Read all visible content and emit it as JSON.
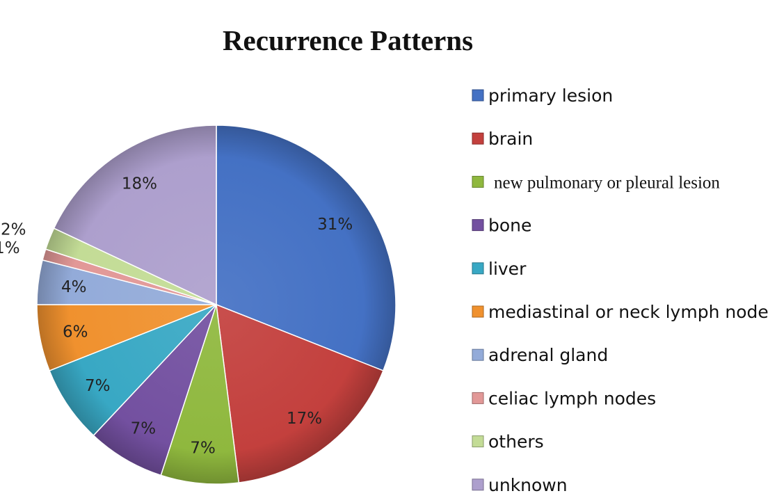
{
  "chart_data": {
    "type": "pie",
    "title": "Recurrence Patterns",
    "slices": [
      {
        "label": "primary lesion",
        "value": 31,
        "value_label": "31%",
        "color": "#4471c4"
      },
      {
        "label": "brain",
        "value": 17,
        "value_label": "17%",
        "color": "#c3403d"
      },
      {
        "label": "new pulmonary or pleural lesion",
        "value": 7,
        "value_label": "7%",
        "color": "#8fb83e"
      },
      {
        "label": "bone",
        "value": 7,
        "value_label": "7%",
        "color": "#7350a0"
      },
      {
        "label": "liver",
        "value": 7,
        "value_label": "7%",
        "color": "#38a8c4"
      },
      {
        "label": "mediastinal or neck lymph node",
        "value": 6,
        "value_label": "6%",
        "color": "#f0912e"
      },
      {
        "label": "adrenal gland",
        "value": 4,
        "value_label": "4%",
        "color": "#93abd9"
      },
      {
        "label": "celiac lymph nodes",
        "value": 1,
        "value_label": "1%",
        "color": "#e29897"
      },
      {
        "label": "others",
        "value": 2,
        "value_label": "2%",
        "color": "#c3dc96"
      },
      {
        "label": "unknown",
        "value": 18,
        "value_label": "18%",
        "color": "#ad9fcd"
      }
    ],
    "legend_position": "right",
    "start_angle": "12 o'clock",
    "direction": "clockwise"
  }
}
